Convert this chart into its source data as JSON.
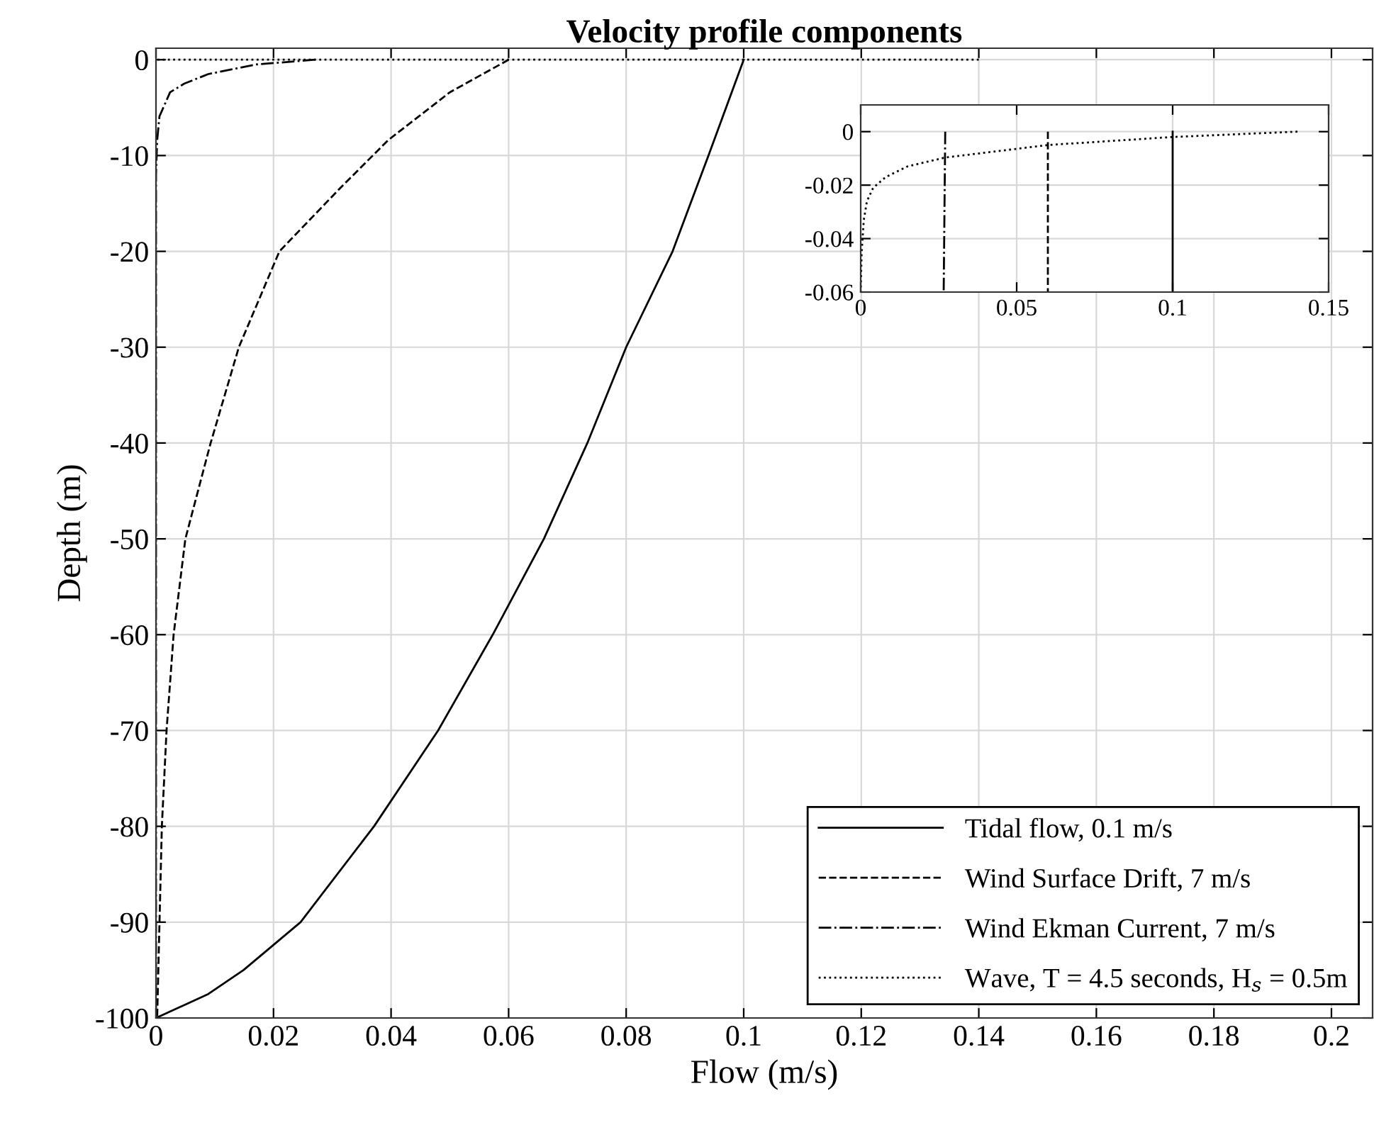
{
  "chart_data": [
    {
      "type": "line",
      "title": "Velocity profile components",
      "xlabel": "Flow (m/s)",
      "ylabel": "Depth (m)",
      "xlim": [
        0,
        0.207
      ],
      "xticks": [
        0,
        0.02,
        0.04,
        0.06,
        0.08,
        0.1,
        0.12,
        0.14,
        0.16,
        0.18,
        0.2
      ],
      "ylim": [
        -100,
        1.2
      ],
      "yticks": [
        -100,
        -90,
        -80,
        -70,
        -60,
        -50,
        -40,
        -30,
        -20,
        -10,
        0
      ],
      "grid": true,
      "legend": "bottom right",
      "series": [
        {
          "name": "Tidal flow, 0.1 m/s",
          "color": "#000000",
          "line_style": "solid",
          "x": [
            0.1,
            0.094,
            0.0879,
            0.08,
            0.0734,
            0.066,
            0.0573,
            0.048,
            0.0371,
            0.0246,
            0.0149,
            0.0089,
            0
          ],
          "values": [
            0,
            -10,
            -20,
            -30,
            -40,
            -50,
            -60,
            -70,
            -80,
            -90,
            -95,
            -97.5,
            -100
          ]
        },
        {
          "name": "Wind Surface Drift, 7 m/s",
          "color": "#000000",
          "line_style": "dashed",
          "x": [
            0.06,
            0.05,
            0.0395,
            0.0315,
            0.021,
            0.0141,
            0.0093,
            0.005,
            0.003,
            0.0018,
            0.001,
            0.0006,
            0.0002
          ],
          "values": [
            0,
            -3.4,
            -8.4,
            -13.3,
            -20,
            -30,
            -40,
            -50,
            -60,
            -70,
            -80,
            -90,
            -100
          ]
        },
        {
          "name": "Wind Ekman Current, 7 m/s",
          "color": "#000000",
          "line_style": "dashdot",
          "x": [
            0.0271,
            0.017,
            0.0089,
            0.0048,
            0.0024,
            0.0006,
            0.0002,
            0,
            0
          ],
          "values": [
            0,
            -0.5,
            -1.5,
            -2.5,
            -3.4,
            -5.9,
            -8.4,
            -12,
            -100
          ]
        },
        {
          "name": "Wave, T = 4.5 seconds, H$_{s}$ = 0.5m",
          "color": "#000000",
          "line_style": "dotted",
          "x": [
            0.14,
            0
          ],
          "values": [
            0,
            0
          ]
        }
      ]
    },
    {
      "type": "line",
      "xlim": [
        0,
        0.15
      ],
      "xticks": [
        0,
        0.05,
        0.1,
        0.15
      ],
      "ylim": [
        -0.06,
        0.01
      ],
      "yticks": [
        -0.06,
        -0.04,
        -0.02,
        0
      ],
      "grid": true,
      "series": [
        {
          "color": "#000000",
          "line_style": "solid",
          "x": [
            0.1,
            0.1
          ],
          "values": [
            0,
            -0.06
          ]
        },
        {
          "color": "#000000",
          "line_style": "dashed",
          "x": [
            0.06,
            0.06
          ],
          "values": [
            0,
            -0.06
          ]
        },
        {
          "color": "#000000",
          "line_style": "dashdot",
          "x": [
            0.0271,
            0.0266
          ],
          "values": [
            0,
            -0.06
          ]
        },
        {
          "color": "#000000",
          "line_style": "dotted",
          "x": [
            0.14,
            0.1,
            0.06,
            0.027,
            0.015,
            0.008,
            0.004,
            0.002,
            0.001,
            0.0003,
            0
          ],
          "values": [
            0,
            -0.002,
            -0.005,
            -0.0097,
            -0.013,
            -0.017,
            -0.021,
            -0.026,
            -0.033,
            -0.045,
            -0.06
          ]
        }
      ]
    }
  ]
}
